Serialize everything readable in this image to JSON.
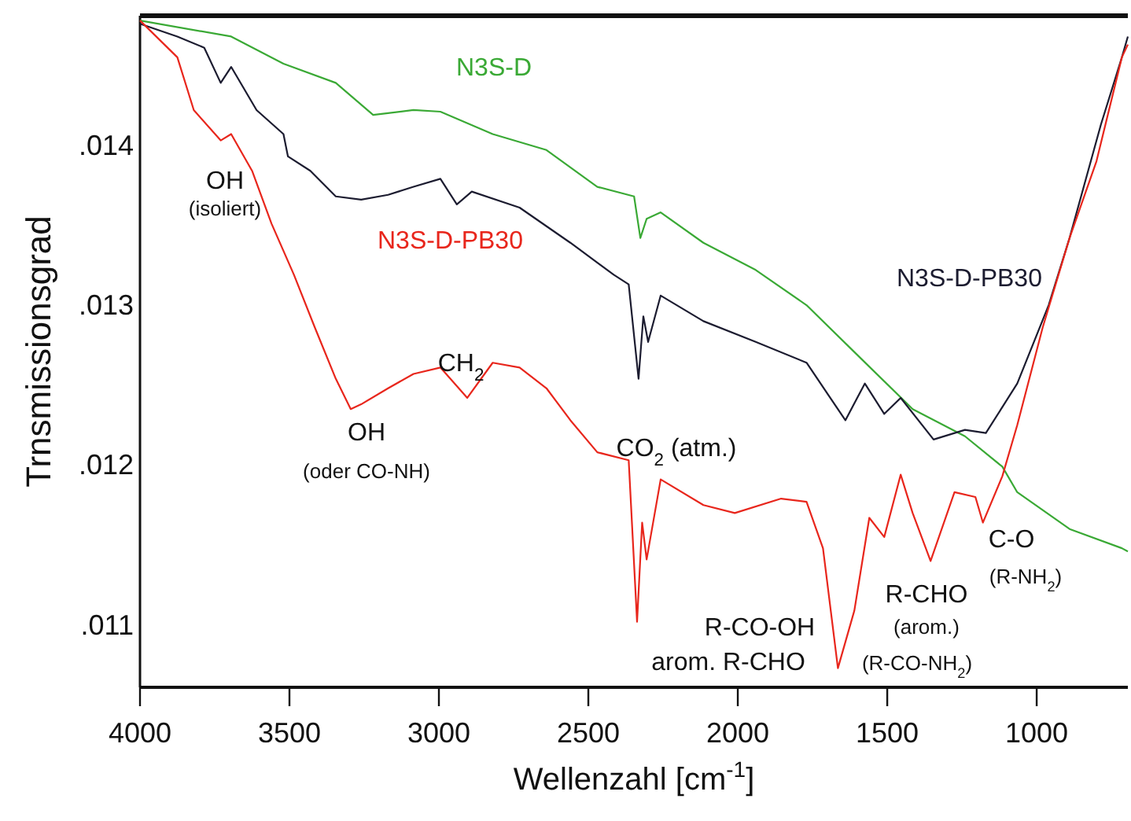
{
  "chart_data": {
    "type": "line",
    "xlabel": "Wellenzahl [cm$^{-1}$]",
    "ylabel": "Trnsmissionsgrad",
    "xlim": [
      4000,
      695
    ],
    "xticks": [
      4000,
      3500,
      3000,
      2500,
      2000,
      1500,
      1000
    ],
    "ylim": [
      0.0106,
      0.0148
    ],
    "yticks": [
      {
        "value": 0.011,
        "label": ".011"
      },
      {
        "value": 0.012,
        "label": ".012"
      },
      {
        "value": 0.013,
        "label": ".013"
      },
      {
        "value": 0.014,
        "label": ".014"
      }
    ],
    "grid": false,
    "legend": false,
    "marker": "none",
    "line_style": "solid",
    "series": [
      {
        "name": "N3S-D",
        "color": "#3aa935",
        "x": [
          4000,
          3695,
          3520,
          3345,
          3220,
          3085,
          2995,
          2820,
          2640,
          2470,
          2347,
          2326,
          2305,
          2258,
          2115,
          1940,
          1770,
          1590,
          1415,
          1240,
          1115,
          1065,
          890,
          715,
          695
        ],
        "values": [
          0.01477,
          0.01467,
          0.0145,
          0.01438,
          0.01418,
          0.01421,
          0.0142,
          0.01406,
          0.01396,
          0.01373,
          0.01367,
          0.01341,
          0.01353,
          0.01357,
          0.01338,
          0.01321,
          0.01299,
          0.01266,
          0.01234,
          0.01217,
          0.01198,
          0.01182,
          0.01159,
          0.01147,
          0.01145
        ]
      },
      {
        "name": "N3S-D-PB30",
        "color": "#1c1c30",
        "x": [
          4000,
          3875,
          3785,
          3730,
          3695,
          3610,
          3520,
          3505,
          3430,
          3345,
          3260,
          3170,
          3085,
          2995,
          2940,
          2890,
          2730,
          2560,
          2415,
          2365,
          2332,
          2316,
          2300,
          2258,
          2115,
          1940,
          1770,
          1640,
          1575,
          1510,
          1455,
          1345,
          1240,
          1170,
          1065,
          960,
          890,
          785,
          715,
          695
        ],
        "values": [
          0.01475,
          0.01467,
          0.0146,
          0.01438,
          0.01448,
          0.01421,
          0.01406,
          0.01392,
          0.01383,
          0.01367,
          0.01365,
          0.01368,
          0.01373,
          0.01378,
          0.01362,
          0.0137,
          0.0136,
          0.01338,
          0.01318,
          0.01312,
          0.01253,
          0.01292,
          0.01276,
          0.01305,
          0.01289,
          0.01276,
          0.01263,
          0.01227,
          0.0125,
          0.01231,
          0.01241,
          0.01215,
          0.01221,
          0.01219,
          0.0125,
          0.01299,
          0.01341,
          0.01412,
          0.01454,
          0.01467
        ]
      },
      {
        "name": "N3S-D-PB30",
        "color": "#e8261c",
        "x": [
          4000,
          3875,
          3820,
          3730,
          3695,
          3625,
          3560,
          3485,
          3415,
          3345,
          3295,
          3260,
          3170,
          3085,
          2995,
          2905,
          2820,
          2730,
          2640,
          2560,
          2470,
          2365,
          2337,
          2320,
          2305,
          2258,
          2115,
          2010,
          1855,
          1770,
          1715,
          1665,
          1610,
          1560,
          1510,
          1455,
          1415,
          1355,
          1275,
          1205,
          1180,
          1115,
          1065,
          980,
          890,
          800,
          715,
          695
        ],
        "values": [
          0.01477,
          0.01454,
          0.01421,
          0.01402,
          0.01406,
          0.01383,
          0.0135,
          0.01318,
          0.01285,
          0.01253,
          0.01234,
          0.01237,
          0.01247,
          0.01256,
          0.0126,
          0.01241,
          0.01263,
          0.0126,
          0.01247,
          0.01227,
          0.01207,
          0.01202,
          0.01101,
          0.01163,
          0.0114,
          0.0119,
          0.01174,
          0.01169,
          0.01178,
          0.01176,
          0.01147,
          0.01072,
          0.01108,
          0.01166,
          0.01154,
          0.01193,
          0.01169,
          0.01139,
          0.01182,
          0.01179,
          0.01163,
          0.01192,
          0.01224,
          0.01285,
          0.01341,
          0.01389,
          0.01454,
          0.01462
        ]
      }
    ],
    "annotations": [
      "OH",
      "(isoliert)",
      "CH$_{2}$",
      "OH",
      "(oder CO-NH)",
      "CO$_{2}$ (atm.)",
      "R-CO-OH",
      "arom. R-CHO",
      "(R-CO-NH$_{2}$)",
      "R-CHO",
      "(arom.)",
      "C-O",
      "(R-NH$_{2}$)"
    ]
  }
}
